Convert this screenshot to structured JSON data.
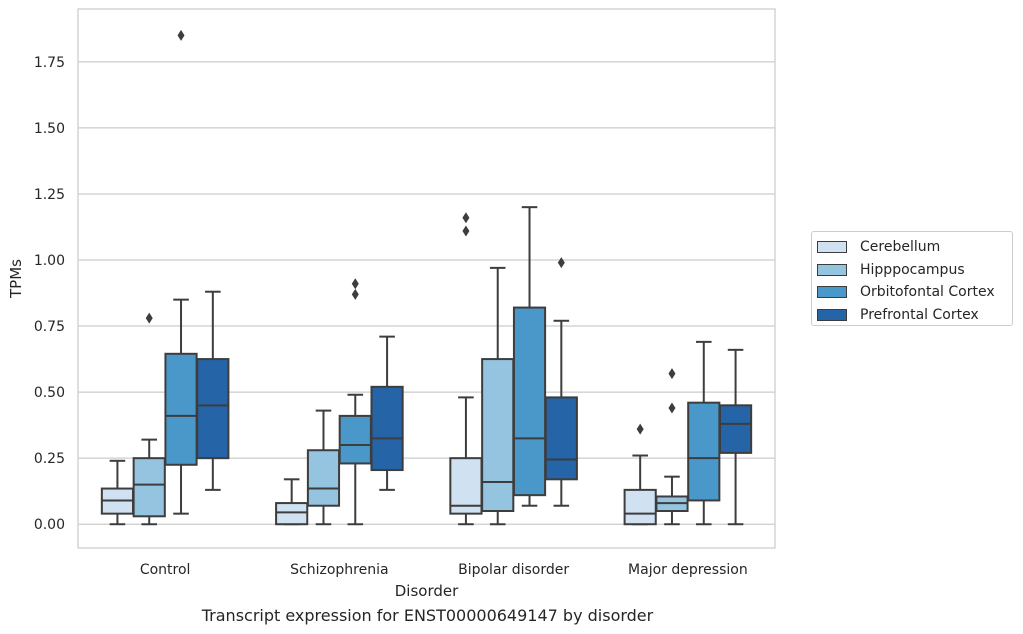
{
  "chart_data": {
    "type": "box",
    "xlabel": "Disorder",
    "ylabel": "TPMs",
    "caption": "Transcript expression for ENST00000649147 by disorder",
    "ylim": [
      -0.09,
      1.95
    ],
    "yticks": [
      0.0,
      0.25,
      0.5,
      0.75,
      1.0,
      1.25,
      1.5,
      1.75
    ],
    "ytick_labels": [
      "0.00",
      "0.25",
      "0.50",
      "0.75",
      "1.00",
      "1.25",
      "1.50",
      "1.75"
    ],
    "grid": "horizontal",
    "legend_position": "right",
    "categories": [
      "Control",
      "Schizophrenia",
      "Bipolar disorder",
      "Major depression"
    ],
    "series": [
      {
        "name": "Cerebellum",
        "color": "#d0e1f2",
        "boxes": [
          {
            "whisker_low": 0.0,
            "q1": 0.04,
            "median": 0.09,
            "q3": 0.135,
            "whisker_high": 0.24,
            "outliers": []
          },
          {
            "whisker_low": 0.0,
            "q1": 0.0,
            "median": 0.045,
            "q3": 0.08,
            "whisker_high": 0.17,
            "outliers": []
          },
          {
            "whisker_low": 0.0,
            "q1": 0.04,
            "median": 0.07,
            "q3": 0.25,
            "whisker_high": 0.48,
            "outliers": [
              1.11,
              1.16
            ]
          },
          {
            "whisker_low": 0.0,
            "q1": 0.0,
            "median": 0.04,
            "q3": 0.13,
            "whisker_high": 0.26,
            "outliers": [
              0.36
            ]
          }
        ]
      },
      {
        "name": "Hipppocampus",
        "color": "#94c4df",
        "boxes": [
          {
            "whisker_low": 0.0,
            "q1": 0.03,
            "median": 0.15,
            "q3": 0.25,
            "whisker_high": 0.32,
            "outliers": [
              0.78
            ]
          },
          {
            "whisker_low": 0.0,
            "q1": 0.07,
            "median": 0.135,
            "q3": 0.28,
            "whisker_high": 0.43,
            "outliers": []
          },
          {
            "whisker_low": 0.0,
            "q1": 0.05,
            "median": 0.16,
            "q3": 0.625,
            "whisker_high": 0.97,
            "outliers": []
          },
          {
            "whisker_low": 0.0,
            "q1": 0.05,
            "median": 0.08,
            "q3": 0.105,
            "whisker_high": 0.18,
            "outliers": [
              0.44,
              0.57
            ]
          }
        ]
      },
      {
        "name": "Orbitofontal Cortex",
        "color": "#4a98c9",
        "boxes": [
          {
            "whisker_low": 0.04,
            "q1": 0.225,
            "median": 0.41,
            "q3": 0.645,
            "whisker_high": 0.85,
            "outliers": [
              1.85
            ]
          },
          {
            "whisker_low": 0.0,
            "q1": 0.23,
            "median": 0.3,
            "q3": 0.41,
            "whisker_high": 0.49,
            "outliers": [
              0.87,
              0.91
            ]
          },
          {
            "whisker_low": 0.07,
            "q1": 0.11,
            "median": 0.325,
            "q3": 0.82,
            "whisker_high": 1.2,
            "outliers": []
          },
          {
            "whisker_low": 0.0,
            "q1": 0.09,
            "median": 0.25,
            "q3": 0.46,
            "whisker_high": 0.69,
            "outliers": []
          }
        ]
      },
      {
        "name": "Prefrontal Cortex",
        "color": "#2464a7",
        "boxes": [
          {
            "whisker_low": 0.13,
            "q1": 0.25,
            "median": 0.45,
            "q3": 0.625,
            "whisker_high": 0.88,
            "outliers": []
          },
          {
            "whisker_low": 0.13,
            "q1": 0.205,
            "median": 0.325,
            "q3": 0.52,
            "whisker_high": 0.71,
            "outliers": []
          },
          {
            "whisker_low": 0.07,
            "q1": 0.17,
            "median": 0.245,
            "q3": 0.48,
            "whisker_high": 0.77,
            "outliers": [
              0.99
            ]
          },
          {
            "whisker_low": 0.0,
            "q1": 0.27,
            "median": 0.38,
            "q3": 0.45,
            "whisker_high": 0.66,
            "outliers": []
          }
        ]
      }
    ]
  }
}
